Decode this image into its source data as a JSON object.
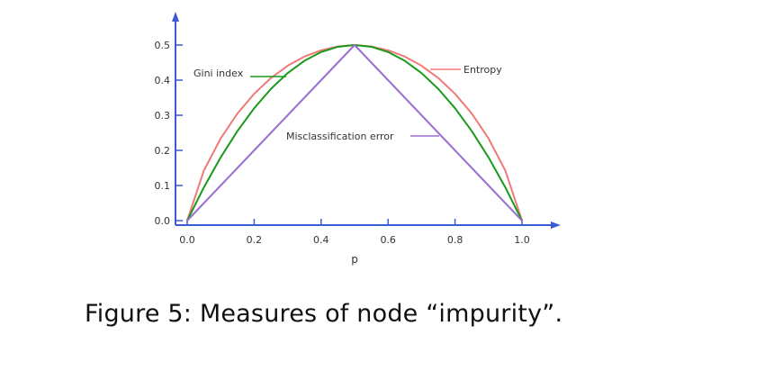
{
  "caption": "Figure 5: Measures of node “impurity”.",
  "chart_data": {
    "type": "line",
    "title": "",
    "xlabel": "p",
    "ylabel": "",
    "xlim": [
      0.0,
      1.0
    ],
    "ylim": [
      0.0,
      0.5
    ],
    "x_ticks": [
      0.0,
      0.2,
      0.4,
      0.6,
      0.8,
      1.0
    ],
    "x_tick_labels": [
      "0.0",
      "0.2",
      "0.4",
      "0.6",
      "0.8",
      "1.0"
    ],
    "y_ticks": [
      0.0,
      0.1,
      0.2,
      0.3,
      0.4,
      0.5
    ],
    "y_tick_labels": [
      "0.0",
      "0.1",
      "0.2",
      "0.3",
      "0.4",
      "0.5"
    ],
    "grid": false,
    "axis_color": "#3b5bd6",
    "x": [
      0.0,
      0.05,
      0.1,
      0.15,
      0.2,
      0.25,
      0.3,
      0.35,
      0.4,
      0.45,
      0.5,
      0.55,
      0.6,
      0.65,
      0.7,
      0.75,
      0.8,
      0.85,
      0.9,
      0.95,
      1.0
    ],
    "series": [
      {
        "name": "Entropy",
        "color": "#f07a7a",
        "values": [
          0.0,
          0.143,
          0.234,
          0.305,
          0.361,
          0.406,
          0.441,
          0.467,
          0.485,
          0.496,
          0.5,
          0.496,
          0.485,
          0.467,
          0.441,
          0.406,
          0.361,
          0.305,
          0.234,
          0.143,
          0.0
        ]
      },
      {
        "name": "Gini index",
        "color": "#1a9a1a",
        "values": [
          0.0,
          0.095,
          0.18,
          0.255,
          0.32,
          0.375,
          0.42,
          0.455,
          0.48,
          0.495,
          0.5,
          0.495,
          0.48,
          0.455,
          0.42,
          0.375,
          0.32,
          0.255,
          0.18,
          0.095,
          0.0
        ]
      },
      {
        "name": "Misclassification error",
        "color": "#9b6fd0",
        "values": [
          0.0,
          0.05,
          0.1,
          0.15,
          0.2,
          0.25,
          0.3,
          0.35,
          0.4,
          0.45,
          0.5,
          0.45,
          0.4,
          0.35,
          0.3,
          0.25,
          0.2,
          0.15,
          0.1,
          0.05,
          0.0
        ]
      }
    ],
    "annotations": [
      {
        "text": "Gini index",
        "series": "Gini index",
        "x": 0.295,
        "y": 0.412
      },
      {
        "text": "Entropy",
        "series": "Entropy",
        "x": 0.735,
        "y": 0.418
      },
      {
        "text": "Misclassification error",
        "series": "Misclassification error",
        "x": 0.745,
        "y": 0.255
      }
    ]
  }
}
